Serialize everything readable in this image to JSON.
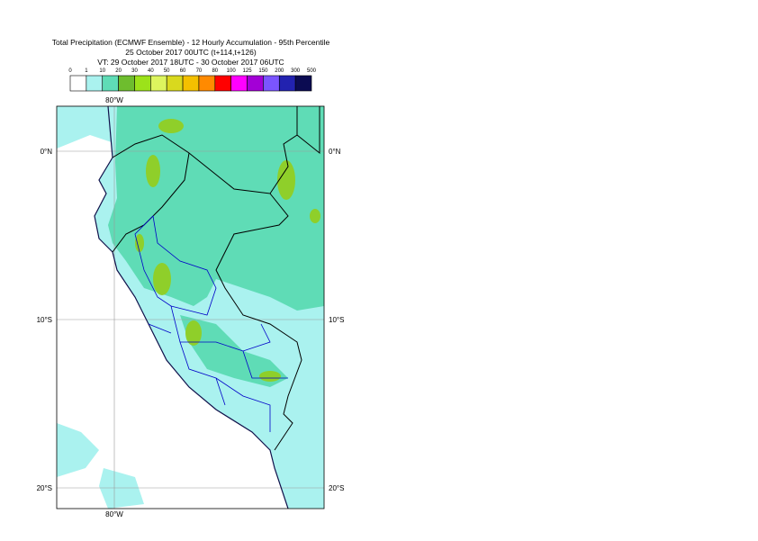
{
  "map": {
    "title": [
      "Total Precipitation (ECMWF Ensemble) - 12 Hourly Accumulation - 95th Percentile",
      "25 October 2017 00UTC (t+114,t+126)",
      "VT: 29 October 2017 18UTC - 30 October 2017 06UTC"
    ],
    "colorbar": {
      "levels": [
        0,
        1,
        10,
        20,
        30,
        40,
        50,
        60,
        70,
        80,
        100,
        125,
        150,
        200,
        300,
        500
      ],
      "colors": [
        "#ffffff",
        "#aaf2ef",
        "#5fdcb6",
        "#6ebd2e",
        "#9ce21a",
        "#ddf55e",
        "#d9d91e",
        "#f4c000",
        "#ff8a00",
        "#ff0000",
        "#ff00ff",
        "#a300d6",
        "#7b55ff",
        "#2222b0",
        "#0b0b52"
      ]
    },
    "labels": {
      "lon": "80°W",
      "lat": [
        "0°N",
        "10°S",
        "20°S"
      ]
    }
  }
}
